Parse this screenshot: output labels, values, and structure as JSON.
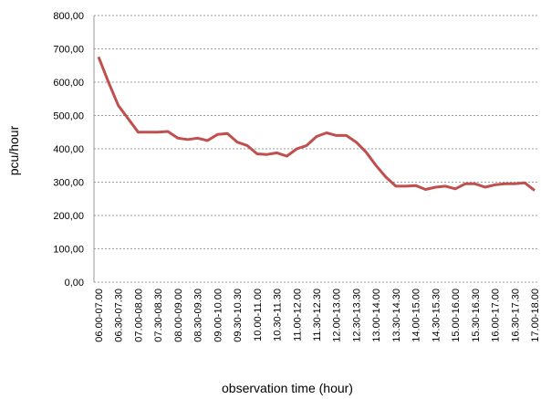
{
  "chart_data": {
    "type": "line",
    "x_label": "observation time (hour)",
    "y_label": "pcu/hour",
    "categories": [
      "06.00-07.00",
      null,
      "06.30-07.30",
      null,
      "07.00-08.00",
      null,
      "07.30-08.30",
      null,
      "08.00-09.00",
      null,
      "08.30-09.30",
      null,
      "09.00-10.00",
      null,
      "09.30-10.30",
      null,
      "10.00-11.00",
      null,
      "10.30-11.30",
      null,
      "11.00-12.00",
      null,
      "11.30-12.30",
      null,
      "12.00-13.00",
      null,
      "12.30-13.30",
      null,
      "13.00-14.00",
      null,
      "13.30-14.30",
      null,
      "14.00-15.00",
      null,
      "14.30-15.30",
      null,
      "15.00-16.00",
      null,
      "15.30-16.30",
      null,
      "16.00-17.00",
      null,
      "16.30-17.30",
      null,
      "17.00-18.00"
    ],
    "values": [
      676,
      600,
      530,
      490,
      450,
      450,
      450,
      452,
      432,
      428,
      432,
      425,
      443,
      446,
      420,
      410,
      385,
      383,
      388,
      378,
      400,
      410,
      437,
      448,
      440,
      440,
      420,
      390,
      350,
      315,
      288,
      288,
      290,
      278,
      285,
      288,
      280,
      295,
      295,
      285,
      292,
      295,
      295,
      298,
      275
    ],
    "color": "#c0504d",
    "ylim": [
      0,
      800
    ],
    "yticks": [
      {
        "value": 0,
        "label": "0,00"
      },
      {
        "value": 100,
        "label": "100,00"
      },
      {
        "value": 200,
        "label": "200,00"
      },
      {
        "value": 300,
        "label": "300,00"
      },
      {
        "value": 400,
        "label": "400,00"
      },
      {
        "value": 500,
        "label": "500,00"
      },
      {
        "value": 600,
        "label": "600,00"
      },
      {
        "value": 700,
        "label": "700,00"
      },
      {
        "value": 800,
        "label": "800,00"
      }
    ],
    "grid": true
  }
}
